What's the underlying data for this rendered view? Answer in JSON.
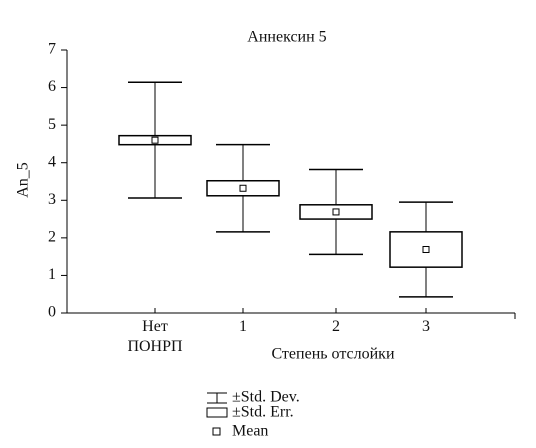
{
  "chart_data": {
    "type": "box",
    "title": "Аннексин 5",
    "x_label": "Степень отслойки",
    "y_label": "An_5",
    "categories": [
      "Нет ПОНРП",
      "1",
      "2",
      "3"
    ],
    "means": [
      4.6,
      3.32,
      2.69,
      1.69
    ],
    "se": [
      0.12,
      0.2,
      0.19,
      0.47
    ],
    "sd": [
      1.54,
      1.16,
      1.13,
      1.26
    ],
    "ylim": [
      0,
      7
    ],
    "yticks": [
      0,
      1,
      2,
      3,
      4,
      5,
      6,
      7
    ],
    "legend": [
      "±Std. Dev.",
      "±Std. Err.",
      "Mean"
    ],
    "color": "#000000"
  }
}
